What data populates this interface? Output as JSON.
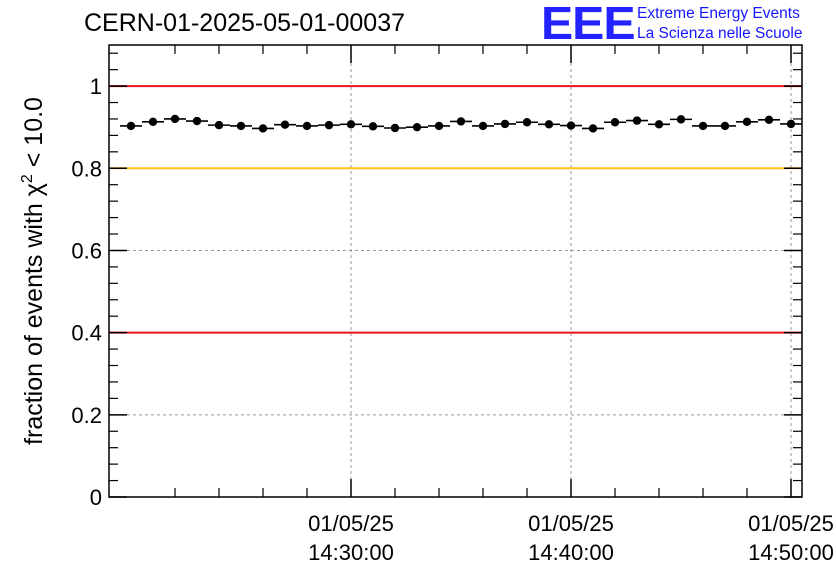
{
  "header": {
    "title": "CERN-01-2025-05-01-00037"
  },
  "logo": {
    "mark": "EEE",
    "line1": "Extreme Energy Events",
    "line2": "La Scienza nelle Scuole",
    "color": "#2323ff"
  },
  "chart_data": {
    "type": "scatter",
    "title": "CERN-01-2025-05-01-00037",
    "ylabel": "fraction of events with χ² < 10.0",
    "xlabel": "",
    "x_unit": "minutes after 01/05/25 14:20:00",
    "xlim": [
      "01/05/25 14:19:00",
      "01/05/25 14:50:30"
    ],
    "ylim": [
      0,
      1.1
    ],
    "grid": true,
    "x_ticks": [
      {
        "date": "01/05/25",
        "time": "14:30:00"
      },
      {
        "date": "01/05/25",
        "time": "14:40:00"
      },
      {
        "date": "01/05/25",
        "time": "14:50:00"
      }
    ],
    "y_ticks": [
      "0",
      "0.2",
      "0.4",
      "0.6",
      "0.8",
      "1"
    ],
    "reference_lines": [
      {
        "y": 1.0,
        "color": "#e8141c"
      },
      {
        "y": 0.8,
        "color": "#ffc21a"
      },
      {
        "y": 0.4,
        "color": "#e8141c"
      }
    ],
    "series": [
      {
        "marker": "circle",
        "color": "#000000",
        "x": [
          "14:20:00",
          "14:21:00",
          "14:22:00",
          "14:23:00",
          "14:24:00",
          "14:25:00",
          "14:26:00",
          "14:27:00",
          "14:28:00",
          "14:29:00",
          "14:30:00",
          "14:31:00",
          "14:32:00",
          "14:33:00",
          "14:34:00",
          "14:35:00",
          "14:36:00",
          "14:37:00",
          "14:38:00",
          "14:39:00",
          "14:40:00",
          "14:41:00",
          "14:42:00",
          "14:43:00",
          "14:44:00",
          "14:45:00",
          "14:46:00",
          "14:47:00",
          "14:48:00",
          "14:49:00",
          "14:50:00"
        ],
        "values": [
          0.903,
          0.913,
          0.92,
          0.915,
          0.905,
          0.903,
          0.897,
          0.906,
          0.903,
          0.905,
          0.907,
          0.902,
          0.898,
          0.9,
          0.903,
          0.914,
          0.903,
          0.908,
          0.912,
          0.907,
          0.904,
          0.897,
          0.912,
          0.916,
          0.907,
          0.919,
          0.903,
          0.903,
          0.913,
          0.918,
          0.908
        ]
      }
    ]
  }
}
